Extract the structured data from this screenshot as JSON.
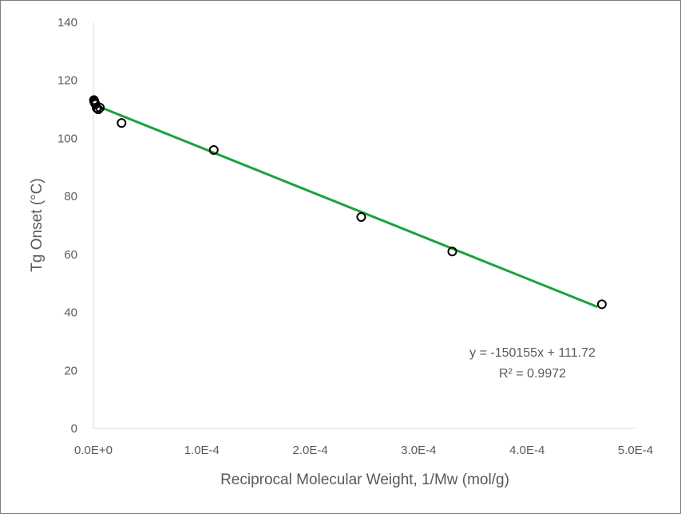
{
  "chart_data": {
    "type": "scatter",
    "title": "",
    "xlabel": "Reciprocal Molecular Weight, 1/Mw (mol/g)",
    "ylabel": "Tg Onset (°C)",
    "xlim": [
      0,
      0.0005
    ],
    "ylim": [
      0,
      140
    ],
    "x_ticks": [
      0,
      0.0001,
      0.0002,
      0.0003,
      0.0004,
      0.0005
    ],
    "x_tick_labels": [
      "0.0E+0",
      "1.0E-4",
      "2.0E-4",
      "3.0E-4",
      "4.0E-4",
      "5.0E-4"
    ],
    "y_ticks": [
      0,
      20,
      40,
      60,
      80,
      100,
      120,
      140
    ],
    "y_tick_labels": [
      "0",
      "20",
      "40",
      "60",
      "80",
      "100",
      "120",
      "140"
    ],
    "grid": false,
    "series": [
      {
        "name": "Tg Onset",
        "marker": "open-circle",
        "x": [
          5e-07,
          8e-07,
          1.2e-06,
          2e-06,
          3e-06,
          4.5e-06,
          6e-06,
          2.6e-05,
          0.000111,
          0.000247,
          0.000331,
          0.000469
        ],
        "y": [
          113.2,
          112.8,
          112.3,
          111.8,
          110.5,
          110.0,
          110.6,
          105.3,
          96.0,
          72.9,
          61.0,
          42.8
        ]
      }
    ],
    "trendline": {
      "type": "linear",
      "slope": -150155,
      "intercept": 111.72,
      "x_range": [
        0,
        0.000465
      ],
      "color": "#1aa33a",
      "equation": "y = -150155x + 111.72",
      "r_squared": "R² = 0.9972"
    },
    "colors": {
      "marker_stroke": "#000000",
      "axis_text": "#595959",
      "axis_line": "#d9d9d9",
      "frame": "#7f7f7f"
    }
  }
}
